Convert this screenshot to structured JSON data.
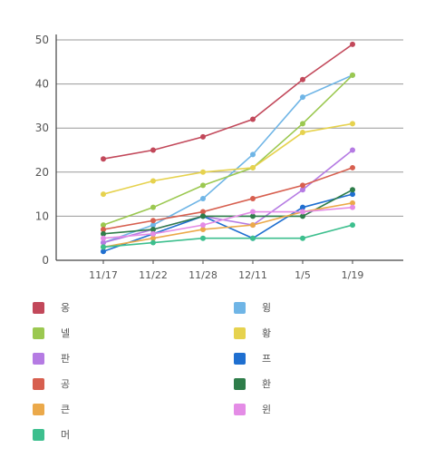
{
  "chart_data": {
    "type": "line",
    "categories": [
      "11/17",
      "11/22",
      "11/28",
      "12/11",
      "1/5",
      "1/19"
    ],
    "ylim": [
      0,
      50
    ],
    "yticks": [
      0,
      10,
      20,
      30,
      40,
      50
    ],
    "grid": true,
    "legend_position": "bottom",
    "series": [
      {
        "name": "옹",
        "color": "#c2485a",
        "values": [
          23,
          25,
          28,
          32,
          41,
          49
        ]
      },
      {
        "name": "윙",
        "color": "#6fb5e6",
        "values": [
          4,
          8,
          14,
          24,
          37,
          42
        ]
      },
      {
        "name": "넬",
        "color": "#9bc850",
        "values": [
          8,
          12,
          17,
          21,
          31,
          42
        ]
      },
      {
        "name": "황",
        "color": "#e6d24e",
        "values": [
          15,
          18,
          20,
          21,
          29,
          31
        ]
      },
      {
        "name": "판",
        "color": "#b57be3",
        "values": [
          4,
          7,
          10,
          8,
          16,
          25
        ]
      },
      {
        "name": "프",
        "color": "#1f6fd0",
        "values": [
          2,
          6,
          10,
          5,
          12,
          15
        ]
      },
      {
        "name": "공",
        "color": "#d75f4f",
        "values": [
          7,
          9,
          11,
          14,
          17,
          21
        ]
      },
      {
        "name": "환",
        "color": "#2e7d4a",
        "values": [
          6,
          7,
          10,
          10,
          10,
          16
        ]
      },
      {
        "name": "큰",
        "color": "#eba94a",
        "values": [
          3,
          5,
          7,
          8,
          11,
          13
        ]
      },
      {
        "name": "윈",
        "color": "#e48ce6",
        "values": [
          5,
          6,
          8,
          11,
          11,
          12
        ]
      },
      {
        "name": "머",
        "color": "#3dbf8e",
        "values": [
          3,
          4,
          5,
          5,
          5,
          8
        ]
      }
    ]
  }
}
